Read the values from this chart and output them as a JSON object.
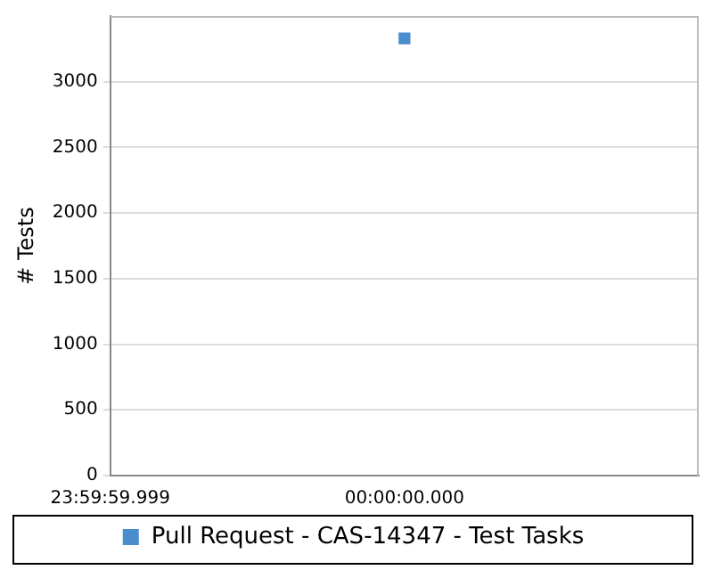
{
  "chart_data": {
    "type": "scatter",
    "ylabel": "# Tests",
    "categories": [
      "23:59:59.999",
      "00:00:00.000",
      null
    ],
    "ylim": [
      0,
      3500
    ],
    "yticks": [
      0,
      500,
      1000,
      1500,
      2000,
      2500,
      3000
    ],
    "series": [
      {
        "name": "Pull Request - CAS-14347 - Test Tasks",
        "color": "#4a8ccc",
        "values": [
          null,
          3330,
          null
        ]
      }
    ],
    "marker": "square",
    "grid": "y",
    "legend": "bottom"
  }
}
